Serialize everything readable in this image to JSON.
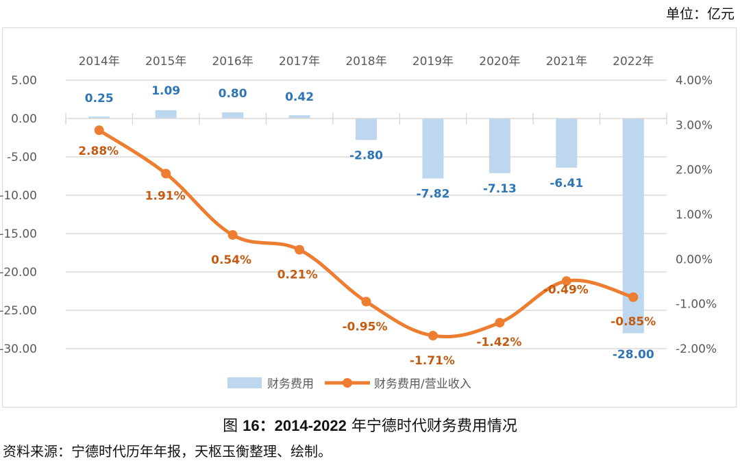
{
  "unit_label": "单位：亿元",
  "caption": {
    "prefix": "图 ",
    "number": "16：2014-2022",
    "text": " 年宁德时代财务费用情况"
  },
  "source": "资料来源：宁德时代历年年报，天枢玉衡整理、绘制。",
  "chart_data": {
    "type": "bar+line",
    "title": "图 16：2014-2022 年宁德时代财务费用情况",
    "unit": "亿元",
    "categories": [
      "2014年",
      "2015年",
      "2016年",
      "2017年",
      "2018年",
      "2019年",
      "2020年",
      "2021年",
      "2022年"
    ],
    "series": [
      {
        "name": "财务费用",
        "type": "bar",
        "axis": "left",
        "color": "#bdd7ee",
        "label_color": "#2e75b6",
        "values": [
          0.25,
          1.09,
          0.8,
          0.42,
          -2.8,
          -7.82,
          -7.13,
          -6.41,
          -28.0
        ],
        "labels": [
          "0.25",
          "1.09",
          "0.80",
          "0.42",
          "-2.80",
          "-7.82",
          "-7.13",
          "-6.41",
          "-28.00"
        ]
      },
      {
        "name": "财务费用/营业收入",
        "type": "line",
        "smooth": true,
        "axis": "right",
        "color": "#ed7d31",
        "label_color": "#c55a11",
        "values": [
          2.88,
          1.91,
          0.54,
          0.21,
          -0.95,
          -1.71,
          -1.42,
          -0.49,
          -0.85
        ],
        "labels": [
          "2.88%",
          "1.91%",
          "0.54%",
          "0.21%",
          "-0.95%",
          "-1.71%",
          "-1.42%",
          "-0.49%",
          "-0.85%"
        ]
      }
    ],
    "y_left": {
      "range": [
        -30,
        5
      ],
      "ticks": [
        5,
        0,
        -5,
        -10,
        -15,
        -20,
        -25,
        -30
      ],
      "tick_labels": [
        "5.00",
        "0.00",
        "-5.00",
        "-10.00",
        "-15.00",
        "-20.00",
        "-25.00",
        "-30.00"
      ]
    },
    "y_right": {
      "range": [
        -2,
        4
      ],
      "ticks": [
        4,
        3,
        2,
        1,
        0,
        -1,
        -2
      ],
      "tick_labels": [
        "4.00%",
        "3.00%",
        "2.00%",
        "1.00%",
        "0.00%",
        "-1.00%",
        "-2.00%"
      ]
    },
    "x_axis_position": "top",
    "grid": true,
    "legend": {
      "position": "bottom",
      "entries": [
        "财务费用",
        "财务费用/营业收入"
      ]
    }
  }
}
